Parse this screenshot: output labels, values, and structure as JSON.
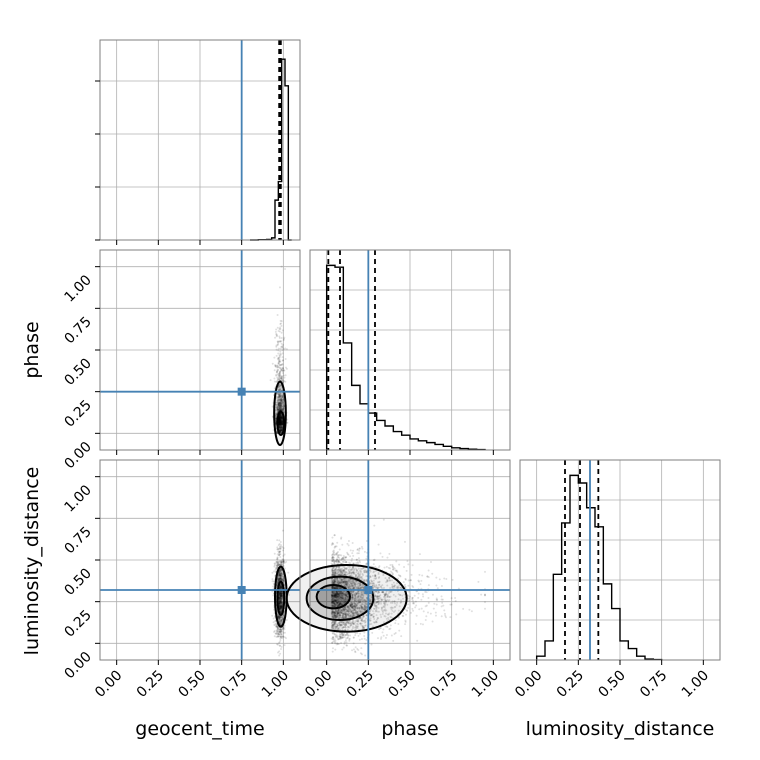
{
  "chart_data": {
    "type": "corner",
    "parameters": [
      "geocent_time",
      "phase",
      "luminosity_distance"
    ],
    "range": [
      -0.1,
      1.1
    ],
    "ticks": [
      0.0,
      0.25,
      0.5,
      0.75,
      1.0
    ],
    "tick_labels": [
      "0.00",
      "0.25",
      "0.50",
      "0.75",
      "1.00"
    ],
    "truths": [
      0.75,
      0.25,
      0.32
    ],
    "truth_color": "#4682b4",
    "quantiles": {
      "geocent_time": [
        0.975,
        0.98,
        0.985
      ],
      "phase": [
        0.01,
        0.08,
        0.29
      ],
      "luminosity_distance": [
        0.17,
        0.26,
        0.37
      ]
    },
    "histograms": {
      "geocent_time": {
        "edges": [
          0.8,
          0.85,
          0.9,
          0.93,
          0.95,
          0.97,
          0.99,
          1.01,
          1.03,
          1.05
        ],
        "counts": [
          0,
          1,
          2,
          8,
          150,
          220,
          680,
          580,
          0
        ]
      },
      "phase": {
        "edges": [
          0.0,
          0.05,
          0.1,
          0.15,
          0.2,
          0.25,
          0.3,
          0.35,
          0.4,
          0.45,
          0.5,
          0.55,
          0.6,
          0.65,
          0.7,
          0.75,
          0.8,
          0.85,
          0.9,
          0.95
        ],
        "counts": [
          100,
          99,
          58,
          35,
          25,
          20,
          16,
          13,
          10,
          8,
          6,
          5,
          4,
          3,
          2,
          1.2,
          0.8,
          0.4,
          0.2
        ]
      },
      "luminosity_distance": {
        "edges": [
          0.0,
          0.05,
          0.1,
          0.15,
          0.2,
          0.25,
          0.3,
          0.35,
          0.4,
          0.45,
          0.5,
          0.55,
          0.6,
          0.65,
          0.7,
          0.75
        ],
        "counts": [
          2,
          10,
          45,
          72,
          97,
          93,
          80,
          70,
          40,
          27,
          10,
          6,
          2,
          0.5,
          0.2
        ]
      }
    },
    "samples": {
      "geocent_time_vs_phase": {
        "x_center": 0.98,
        "x_spread": 0.015,
        "y_peak": 0.05,
        "y_tail_max": 1.0,
        "n": 1400
      },
      "geocent_time_vs_luminosity_distance": {
        "x_center": 0.98,
        "x_spread": 0.015,
        "y_center": 0.28,
        "y_spread": 0.12,
        "n": 1400
      },
      "phase_vs_luminosity_distance": {
        "x_peak": 0.03,
        "x_tail_max": 0.95,
        "y_center": 0.28,
        "y_spread": 0.13,
        "n": 3000
      }
    },
    "contours": {
      "geocent_time_vs_phase": [
        {
          "center": [
            0.98,
            0.12
          ],
          "rx": 0.035,
          "ry": 0.19
        },
        {
          "center": [
            0.985,
            0.06
          ],
          "rx": 0.02,
          "ry": 0.07
        }
      ],
      "geocent_time_vs_luminosity_distance": [
        {
          "center": [
            0.985,
            0.28
          ],
          "rx": 0.035,
          "ry": 0.18
        },
        {
          "center": [
            0.985,
            0.27
          ],
          "rx": 0.02,
          "ry": 0.1
        }
      ],
      "phase_vs_luminosity_distance": [
        {
          "center": [
            0.12,
            0.27
          ],
          "rx": 0.36,
          "ry": 0.2
        },
        {
          "center": [
            0.08,
            0.27
          ],
          "rx": 0.2,
          "ry": 0.13
        },
        {
          "center": [
            0.04,
            0.28
          ],
          "rx": 0.1,
          "ry": 0.07
        }
      ]
    }
  }
}
